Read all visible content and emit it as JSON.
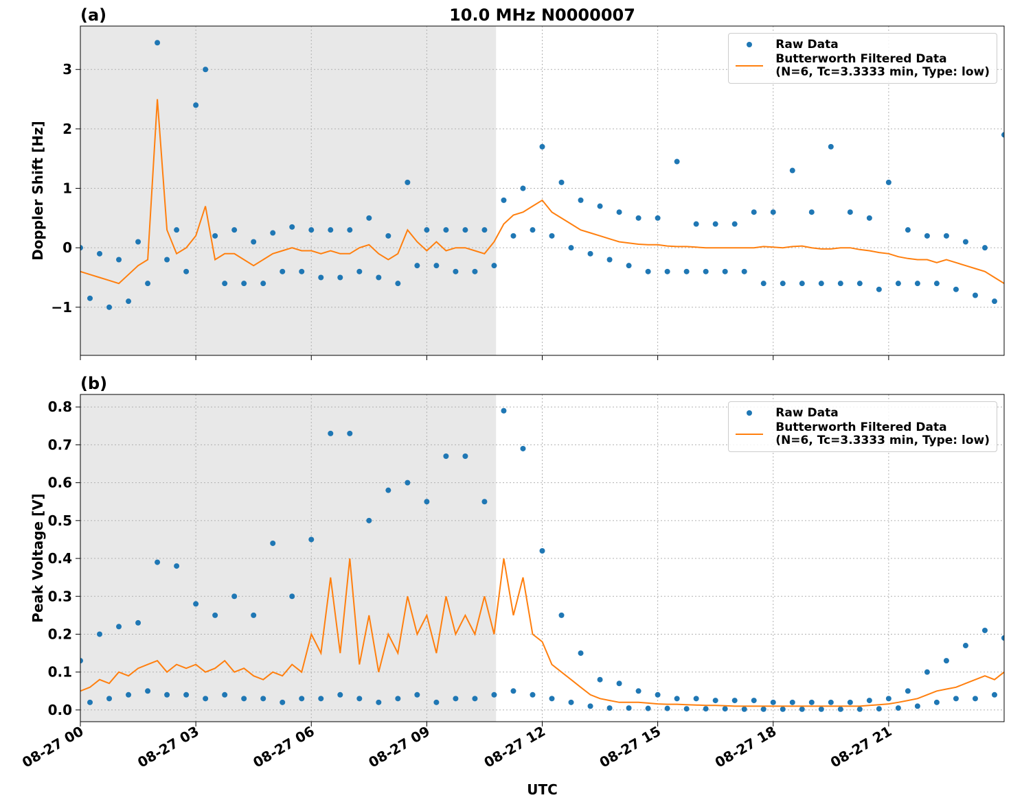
{
  "chart_data": [
    {
      "type": "line",
      "panel_label": "(a)",
      "title": "10.0 MHz N0000007",
      "ylabel": "Doppler Shift [Hz]",
      "xlim": [
        0,
        24
      ],
      "xticks": [
        0,
        3,
        6,
        9,
        12,
        15,
        18,
        21
      ],
      "ylim": [
        -1.81,
        3.73
      ],
      "yticks": [
        {
          "value": -1,
          "label": "−1"
        },
        0,
        1,
        2,
        3
      ],
      "grid": true,
      "legend": "upper right",
      "shade_x": [
        0,
        10.8
      ],
      "shade_color": "#e8e8e8",
      "x": [
        0,
        0.25,
        0.5,
        0.75,
        1,
        1.25,
        1.5,
        1.75,
        2,
        2.25,
        2.5,
        2.75,
        3,
        3.25,
        3.5,
        3.75,
        4,
        4.25,
        4.5,
        4.75,
        5,
        5.25,
        5.5,
        5.75,
        6,
        6.25,
        6.5,
        6.75,
        7,
        7.25,
        7.5,
        7.75,
        8,
        8.25,
        8.5,
        8.75,
        9,
        9.25,
        9.5,
        9.75,
        10,
        10.25,
        10.5,
        10.75,
        11,
        11.25,
        11.5,
        11.75,
        12,
        12.25,
        12.5,
        12.75,
        13,
        13.25,
        13.5,
        13.75,
        14,
        14.25,
        14.5,
        14.75,
        15,
        15.25,
        15.5,
        15.75,
        16,
        16.25,
        16.5,
        16.75,
        17,
        17.25,
        17.5,
        17.75,
        18,
        18.25,
        18.5,
        18.75,
        19,
        19.25,
        19.5,
        19.75,
        20,
        20.25,
        20.5,
        20.75,
        21,
        21.25,
        21.5,
        21.75,
        22,
        22.25,
        22.5,
        22.75,
        23,
        23.25,
        23.5,
        23.75,
        24
      ],
      "series": [
        {
          "name": "Raw Data",
          "type": "scatter",
          "color": "#1f77b4",
          "values": [
            0.0,
            -0.85,
            -0.1,
            -1.0,
            -0.2,
            -0.9,
            0.1,
            -0.6,
            3.45,
            -0.2,
            0.3,
            -0.4,
            2.4,
            3.0,
            0.2,
            -0.6,
            0.3,
            -0.6,
            0.1,
            -0.6,
            0.25,
            -0.4,
            0.35,
            -0.4,
            0.3,
            -0.5,
            0.3,
            -0.5,
            0.3,
            -0.4,
            0.5,
            -0.5,
            0.2,
            -0.6,
            1.1,
            -0.3,
            0.3,
            -0.3,
            0.3,
            -0.4,
            0.3,
            -0.4,
            0.3,
            -0.3,
            0.8,
            0.2,
            1.0,
            0.3,
            1.7,
            0.2,
            1.1,
            0.0,
            0.8,
            -0.1,
            0.7,
            -0.2,
            0.6,
            -0.3,
            0.5,
            -0.4,
            0.5,
            -0.4,
            1.45,
            -0.4,
            0.4,
            -0.4,
            0.4,
            -0.4,
            0.4,
            -0.4,
            0.6,
            -0.6,
            0.6,
            -0.6,
            1.3,
            -0.6,
            0.6,
            -0.6,
            1.7,
            -0.6,
            0.6,
            -0.6,
            0.5,
            -0.7,
            1.1,
            -0.6,
            0.3,
            -0.6,
            0.2,
            -0.6,
            0.2,
            -0.7,
            0.1,
            -0.8,
            0.0,
            -0.9,
            1.9
          ]
        },
        {
          "name": "Butterworth Filtered Data\n(N=6, Tc=3.3333 min, Type: low)",
          "type": "line",
          "color": "#ff7f0e",
          "values": [
            -0.4,
            -0.45,
            -0.5,
            -0.55,
            -0.6,
            -0.45,
            -0.3,
            -0.2,
            2.5,
            0.3,
            -0.1,
            0,
            0.2,
            0.7,
            -0.2,
            -0.1,
            -0.1,
            -0.2,
            -0.3,
            -0.2,
            -0.1,
            -0.05,
            0,
            -0.05,
            -0.05,
            -0.1,
            -0.05,
            -0.1,
            -0.1,
            0,
            0.05,
            -0.1,
            -0.2,
            -0.1,
            0.3,
            0.1,
            -0.05,
            0.1,
            -0.05,
            0,
            0,
            -0.05,
            -0.1,
            0.1,
            0.4,
            0.55,
            0.6,
            0.7,
            0.8,
            0.6,
            0.5,
            0.4,
            0.3,
            0.25,
            0.2,
            0.15,
            0.1,
            0.08,
            0.06,
            0.05,
            0.05,
            0.03,
            0.02,
            0.02,
            0.01,
            0,
            0,
            0,
            0,
            0,
            0,
            0.02,
            0.01,
            0,
            0.02,
            0.03,
            0,
            -0.02,
            -0.02,
            0,
            0,
            -0.03,
            -0.05,
            -0.08,
            -0.1,
            -0.15,
            -0.18,
            -0.2,
            -0.2,
            -0.25,
            -0.2,
            -0.25,
            -0.3,
            -0.35,
            -0.4,
            -0.5,
            -0.6
          ]
        }
      ]
    },
    {
      "type": "line",
      "panel_label": "(b)",
      "ylabel": "Peak Voltage [V]",
      "xlabel": "UTC",
      "xlim": [
        0,
        24
      ],
      "xticks": [
        {
          "value": 0,
          "label": "08-27 00"
        },
        {
          "value": 3,
          "label": "08-27 03"
        },
        {
          "value": 6,
          "label": "08-27 06"
        },
        {
          "value": 9,
          "label": "08-27 09"
        },
        {
          "value": 12,
          "label": "08-27 12"
        },
        {
          "value": 15,
          "label": "08-27 15"
        },
        {
          "value": 18,
          "label": "08-27 18"
        },
        {
          "value": 21,
          "label": "08-27 21"
        }
      ],
      "ylim": [
        -0.031,
        0.833
      ],
      "yticks": [
        {
          "value": 0,
          "label": "0.0"
        },
        0.1,
        0.2,
        0.3,
        0.4,
        0.5,
        0.6,
        0.7,
        0.8
      ],
      "grid": true,
      "legend": "upper right",
      "shade_x": [
        0,
        10.8
      ],
      "shade_color": "#e8e8e8",
      "x": [
        0,
        0.25,
        0.5,
        0.75,
        1,
        1.25,
        1.5,
        1.75,
        2,
        2.25,
        2.5,
        2.75,
        3,
        3.25,
        3.5,
        3.75,
        4,
        4.25,
        4.5,
        4.75,
        5,
        5.25,
        5.5,
        5.75,
        6,
        6.25,
        6.5,
        6.75,
        7,
        7.25,
        7.5,
        7.75,
        8,
        8.25,
        8.5,
        8.75,
        9,
        9.25,
        9.5,
        9.75,
        10,
        10.25,
        10.5,
        10.75,
        11,
        11.25,
        11.5,
        11.75,
        12,
        12.25,
        12.5,
        12.75,
        13,
        13.25,
        13.5,
        13.75,
        14,
        14.25,
        14.5,
        14.75,
        15,
        15.25,
        15.5,
        15.75,
        16,
        16.25,
        16.5,
        16.75,
        17,
        17.25,
        17.5,
        17.75,
        18,
        18.25,
        18.5,
        18.75,
        19,
        19.25,
        19.5,
        19.75,
        20,
        20.25,
        20.5,
        20.75,
        21,
        21.25,
        21.5,
        21.75,
        22,
        22.25,
        22.5,
        22.75,
        23,
        23.25,
        23.5,
        23.75,
        24
      ],
      "series": [
        {
          "name": "Raw Data",
          "type": "scatter",
          "color": "#1f77b4",
          "values": [
            0.13,
            0.02,
            0.2,
            0.03,
            0.22,
            0.04,
            0.23,
            0.05,
            0.39,
            0.04,
            0.38,
            0.04,
            0.28,
            0.03,
            0.25,
            0.04,
            0.3,
            0.03,
            0.25,
            0.03,
            0.44,
            0.02,
            0.3,
            0.03,
            0.45,
            0.03,
            0.73,
            0.04,
            0.73,
            0.03,
            0.5,
            0.02,
            0.58,
            0.03,
            0.6,
            0.04,
            0.55,
            0.02,
            0.67,
            0.03,
            0.67,
            0.03,
            0.55,
            0.04,
            0.79,
            0.05,
            0.69,
            0.04,
            0.42,
            0.03,
            0.25,
            0.02,
            0.15,
            0.01,
            0.08,
            0.005,
            0.07,
            0.005,
            0.05,
            0.004,
            0.04,
            0.004,
            0.03,
            0.003,
            0.03,
            0.003,
            0.025,
            0.003,
            0.025,
            0.002,
            0.025,
            0.002,
            0.02,
            0.002,
            0.02,
            0.002,
            0.02,
            0.002,
            0.02,
            0.002,
            0.02,
            0.002,
            0.025,
            0.003,
            0.03,
            0.005,
            0.05,
            0.01,
            0.1,
            0.02,
            0.13,
            0.03,
            0.17,
            0.03,
            0.21,
            0.04,
            0.19
          ]
        },
        {
          "name": "Butterworth Filtered Data\n(N=6, Tc=3.3333 min, Type: low)",
          "type": "line",
          "color": "#ff7f0e",
          "values": [
            0.05,
            0.06,
            0.08,
            0.07,
            0.1,
            0.09,
            0.11,
            0.12,
            0.13,
            0.1,
            0.12,
            0.11,
            0.12,
            0.1,
            0.11,
            0.13,
            0.1,
            0.11,
            0.09,
            0.08,
            0.1,
            0.09,
            0.12,
            0.1,
            0.2,
            0.15,
            0.35,
            0.15,
            0.4,
            0.12,
            0.25,
            0.1,
            0.2,
            0.15,
            0.3,
            0.2,
            0.25,
            0.15,
            0.3,
            0.2,
            0.25,
            0.2,
            0.3,
            0.2,
            0.4,
            0.25,
            0.35,
            0.2,
            0.18,
            0.12,
            0.1,
            0.08,
            0.06,
            0.04,
            0.03,
            0.025,
            0.02,
            0.02,
            0.02,
            0.018,
            0.016,
            0.015,
            0.015,
            0.014,
            0.013,
            0.012,
            0.012,
            0.011,
            0.01,
            0.01,
            0.01,
            0.01,
            0.01,
            0.01,
            0.01,
            0.01,
            0.01,
            0.01,
            0.01,
            0.01,
            0.01,
            0.01,
            0.012,
            0.014,
            0.016,
            0.02,
            0.025,
            0.03,
            0.04,
            0.05,
            0.055,
            0.06,
            0.07,
            0.08,
            0.09,
            0.08,
            0.1
          ]
        }
      ]
    }
  ]
}
